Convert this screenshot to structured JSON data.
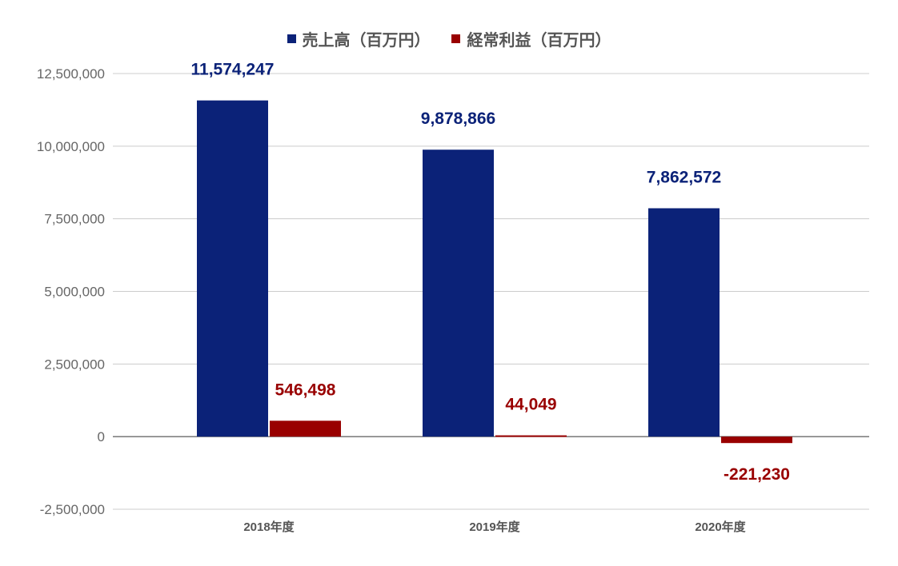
{
  "chart_data": {
    "type": "bar",
    "categories": [
      "2018年度",
      "2019年度",
      "2020年度"
    ],
    "series": [
      {
        "name": "売上高（百万円）",
        "color": "#0b2278",
        "values": [
          11574247,
          9878866,
          7862572
        ],
        "labels": [
          "11,574,247",
          "9,878,866",
          "7,862,572"
        ]
      },
      {
        "name": "経常利益（百万円）",
        "color": "#990000",
        "values": [
          546498,
          44049,
          -221230
        ],
        "labels": [
          "546,498",
          "44,049",
          "-221,230"
        ]
      }
    ],
    "ylim": [
      -2500000,
      12500000
    ],
    "yticks": [
      -2500000,
      0,
      2500000,
      5000000,
      7500000,
      10000000,
      12500000
    ],
    "ytick_labels": [
      "-2,500,000",
      "0",
      "2,500,000",
      "5,000,000",
      "7,500,000",
      "10,000,000",
      "12,500,000"
    ],
    "grid": true,
    "legend_position": "top-center"
  }
}
